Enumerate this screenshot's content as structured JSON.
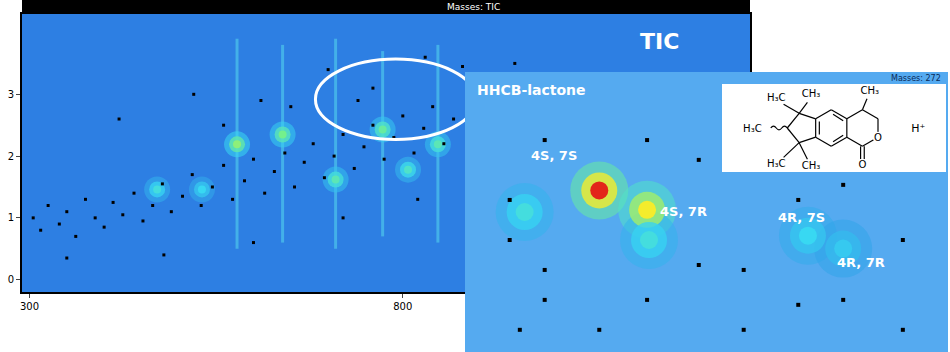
{
  "chart_data": [
    {
      "type": "scatter",
      "title": "Masses: TIC",
      "annotation": "TIC",
      "xlim": [
        290,
        1265
      ],
      "ylim": [
        -0.2,
        4.3
      ],
      "xticks": [
        300,
        800
      ],
      "yticks": [
        0,
        1,
        2,
        3
      ],
      "zlim": [
        0,
        1
      ],
      "peaks": {
        "x": [
          471,
          531,
          578,
          639,
          710,
          773,
          807,
          847
        ],
        "y": [
          1.46,
          1.46,
          2.19,
          2.35,
          1.62,
          2.43,
          1.78,
          2.19
        ],
        "intensity": [
          0.35,
          0.3,
          0.6,
          0.55,
          0.45,
          0.5,
          0.4,
          0.45
        ]
      },
      "streaks": {
        "x": [
          578,
          639,
          710,
          773,
          847
        ],
        "y0": [
          0.5,
          0.6,
          0.5,
          0.7,
          0.6
        ],
        "y1": [
          3.9,
          3.8,
          3.9,
          3.7,
          3.8
        ]
      },
      "dots": {
        "x": [
          305,
          315,
          325,
          340,
          350,
          362,
          375,
          388,
          400,
          412,
          425,
          440,
          452,
          465,
          478,
          490,
          505,
          518,
          530,
          545,
          560,
          572,
          588,
          600,
          615,
          628,
          642,
          655,
          668,
          680,
          695,
          708,
          720,
          735,
          748,
          760,
          775,
          788,
          800,
          815,
          828,
          840,
          855,
          868,
          420,
          520,
          610,
          700,
          760,
          830,
          880,
          950,
          480,
          600,
          720,
          820,
          350,
          560,
          650,
          740
        ],
        "y": [
          1.0,
          0.8,
          1.2,
          0.9,
          1.1,
          0.7,
          1.3,
          1.0,
          0.85,
          1.25,
          1.05,
          1.4,
          0.95,
          1.2,
          1.55,
          1.1,
          1.35,
          1.7,
          1.2,
          1.5,
          1.85,
          1.3,
          1.6,
          1.95,
          1.4,
          1.75,
          2.05,
          1.5,
          1.9,
          2.2,
          1.65,
          2.0,
          2.35,
          1.8,
          2.15,
          2.5,
          1.95,
          2.3,
          2.65,
          2.05,
          2.45,
          2.8,
          2.2,
          2.6,
          2.6,
          3.0,
          2.9,
          3.4,
          3.1,
          3.6,
          3.45,
          3.5,
          0.4,
          0.6,
          1.0,
          1.3,
          0.35,
          2.5,
          2.8,
          2.9
        ]
      },
      "highlight": {
        "x0": 683,
        "x1": 898,
        "y0": 2.27,
        "y1": 3.57
      }
    },
    {
      "type": "scatter",
      "title": "Masses: 272",
      "annotation": "HHCB-lactone",
      "xlim": [
        700,
        900
      ],
      "ylim": [
        2.2,
        3.5
      ],
      "tick_labels": false,
      "zlim": [
        0,
        1
      ],
      "peaks": {
        "x": [
          755.6,
          775.4,
          724.7,
          776.2,
          842.0,
          856.6
        ],
        "y": [
          2.95,
          2.86,
          2.85,
          2.72,
          2.74,
          2.68
        ],
        "intensity": [
          1.0,
          0.8,
          0.35,
          0.35,
          0.3,
          0.25
        ],
        "labels": [
          "4S, 7S",
          "4S, 7R",
          null,
          null,
          "4R, 7S",
          "4R, 7R"
        ]
      },
      "dots": {
        "x": [
          718.5,
          718.5,
          733.0,
          733.0,
          733.0,
          755.6,
          775.4,
          775.4,
          796.8,
          796.8,
          815.4,
          815.4,
          838.0,
          838.0,
          856.6,
          856.6,
          881.3,
          881.3,
          722.7
        ],
        "y": [
          2.906,
          2.72,
          3.184,
          2.581,
          2.442,
          2.303,
          3.184,
          2.442,
          3.092,
          2.604,
          2.581,
          2.303,
          2.906,
          2.419,
          2.976,
          2.442,
          2.72,
          2.303,
          2.303
        ]
      },
      "structure": {
        "labels": [
          "H₃C",
          "CH₃",
          "H₃C",
          "H₃C",
          "CH₃",
          "CH₃",
          "O",
          "O"
        ],
        "charge": "H⁺"
      }
    }
  ]
}
